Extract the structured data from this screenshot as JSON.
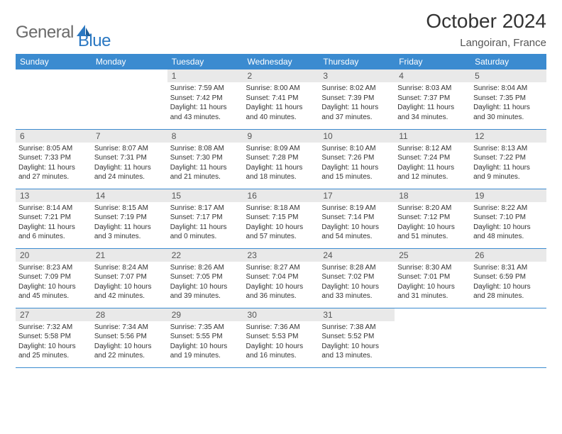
{
  "logo": {
    "text1": "General",
    "text2": "Blue"
  },
  "header": {
    "title": "October 2024",
    "location": "Langoiran, France"
  },
  "colors": {
    "header_bg": "#3b8bd0",
    "header_text": "#ffffff",
    "daynum_bg": "#e9e9e9",
    "border": "#3b8bd0",
    "logo_gray": "#6a6a6a",
    "logo_blue": "#2b78c2"
  },
  "daynames": [
    "Sunday",
    "Monday",
    "Tuesday",
    "Wednesday",
    "Thursday",
    "Friday",
    "Saturday"
  ],
  "weeks": [
    [
      null,
      null,
      {
        "n": "1",
        "sr": "Sunrise: 7:59 AM",
        "ss": "Sunset: 7:42 PM",
        "dl": "Daylight: 11 hours and 43 minutes."
      },
      {
        "n": "2",
        "sr": "Sunrise: 8:00 AM",
        "ss": "Sunset: 7:41 PM",
        "dl": "Daylight: 11 hours and 40 minutes."
      },
      {
        "n": "3",
        "sr": "Sunrise: 8:02 AM",
        "ss": "Sunset: 7:39 PM",
        "dl": "Daylight: 11 hours and 37 minutes."
      },
      {
        "n": "4",
        "sr": "Sunrise: 8:03 AM",
        "ss": "Sunset: 7:37 PM",
        "dl": "Daylight: 11 hours and 34 minutes."
      },
      {
        "n": "5",
        "sr": "Sunrise: 8:04 AM",
        "ss": "Sunset: 7:35 PM",
        "dl": "Daylight: 11 hours and 30 minutes."
      }
    ],
    [
      {
        "n": "6",
        "sr": "Sunrise: 8:05 AM",
        "ss": "Sunset: 7:33 PM",
        "dl": "Daylight: 11 hours and 27 minutes."
      },
      {
        "n": "7",
        "sr": "Sunrise: 8:07 AM",
        "ss": "Sunset: 7:31 PM",
        "dl": "Daylight: 11 hours and 24 minutes."
      },
      {
        "n": "8",
        "sr": "Sunrise: 8:08 AM",
        "ss": "Sunset: 7:30 PM",
        "dl": "Daylight: 11 hours and 21 minutes."
      },
      {
        "n": "9",
        "sr": "Sunrise: 8:09 AM",
        "ss": "Sunset: 7:28 PM",
        "dl": "Daylight: 11 hours and 18 minutes."
      },
      {
        "n": "10",
        "sr": "Sunrise: 8:10 AM",
        "ss": "Sunset: 7:26 PM",
        "dl": "Daylight: 11 hours and 15 minutes."
      },
      {
        "n": "11",
        "sr": "Sunrise: 8:12 AM",
        "ss": "Sunset: 7:24 PM",
        "dl": "Daylight: 11 hours and 12 minutes."
      },
      {
        "n": "12",
        "sr": "Sunrise: 8:13 AM",
        "ss": "Sunset: 7:22 PM",
        "dl": "Daylight: 11 hours and 9 minutes."
      }
    ],
    [
      {
        "n": "13",
        "sr": "Sunrise: 8:14 AM",
        "ss": "Sunset: 7:21 PM",
        "dl": "Daylight: 11 hours and 6 minutes."
      },
      {
        "n": "14",
        "sr": "Sunrise: 8:15 AM",
        "ss": "Sunset: 7:19 PM",
        "dl": "Daylight: 11 hours and 3 minutes."
      },
      {
        "n": "15",
        "sr": "Sunrise: 8:17 AM",
        "ss": "Sunset: 7:17 PM",
        "dl": "Daylight: 11 hours and 0 minutes."
      },
      {
        "n": "16",
        "sr": "Sunrise: 8:18 AM",
        "ss": "Sunset: 7:15 PM",
        "dl": "Daylight: 10 hours and 57 minutes."
      },
      {
        "n": "17",
        "sr": "Sunrise: 8:19 AM",
        "ss": "Sunset: 7:14 PM",
        "dl": "Daylight: 10 hours and 54 minutes."
      },
      {
        "n": "18",
        "sr": "Sunrise: 8:20 AM",
        "ss": "Sunset: 7:12 PM",
        "dl": "Daylight: 10 hours and 51 minutes."
      },
      {
        "n": "19",
        "sr": "Sunrise: 8:22 AM",
        "ss": "Sunset: 7:10 PM",
        "dl": "Daylight: 10 hours and 48 minutes."
      }
    ],
    [
      {
        "n": "20",
        "sr": "Sunrise: 8:23 AM",
        "ss": "Sunset: 7:09 PM",
        "dl": "Daylight: 10 hours and 45 minutes."
      },
      {
        "n": "21",
        "sr": "Sunrise: 8:24 AM",
        "ss": "Sunset: 7:07 PM",
        "dl": "Daylight: 10 hours and 42 minutes."
      },
      {
        "n": "22",
        "sr": "Sunrise: 8:26 AM",
        "ss": "Sunset: 7:05 PM",
        "dl": "Daylight: 10 hours and 39 minutes."
      },
      {
        "n": "23",
        "sr": "Sunrise: 8:27 AM",
        "ss": "Sunset: 7:04 PM",
        "dl": "Daylight: 10 hours and 36 minutes."
      },
      {
        "n": "24",
        "sr": "Sunrise: 8:28 AM",
        "ss": "Sunset: 7:02 PM",
        "dl": "Daylight: 10 hours and 33 minutes."
      },
      {
        "n": "25",
        "sr": "Sunrise: 8:30 AM",
        "ss": "Sunset: 7:01 PM",
        "dl": "Daylight: 10 hours and 31 minutes."
      },
      {
        "n": "26",
        "sr": "Sunrise: 8:31 AM",
        "ss": "Sunset: 6:59 PM",
        "dl": "Daylight: 10 hours and 28 minutes."
      }
    ],
    [
      {
        "n": "27",
        "sr": "Sunrise: 7:32 AM",
        "ss": "Sunset: 5:58 PM",
        "dl": "Daylight: 10 hours and 25 minutes."
      },
      {
        "n": "28",
        "sr": "Sunrise: 7:34 AM",
        "ss": "Sunset: 5:56 PM",
        "dl": "Daylight: 10 hours and 22 minutes."
      },
      {
        "n": "29",
        "sr": "Sunrise: 7:35 AM",
        "ss": "Sunset: 5:55 PM",
        "dl": "Daylight: 10 hours and 19 minutes."
      },
      {
        "n": "30",
        "sr": "Sunrise: 7:36 AM",
        "ss": "Sunset: 5:53 PM",
        "dl": "Daylight: 10 hours and 16 minutes."
      },
      {
        "n": "31",
        "sr": "Sunrise: 7:38 AM",
        "ss": "Sunset: 5:52 PM",
        "dl": "Daylight: 10 hours and 13 minutes."
      },
      null,
      null
    ]
  ]
}
